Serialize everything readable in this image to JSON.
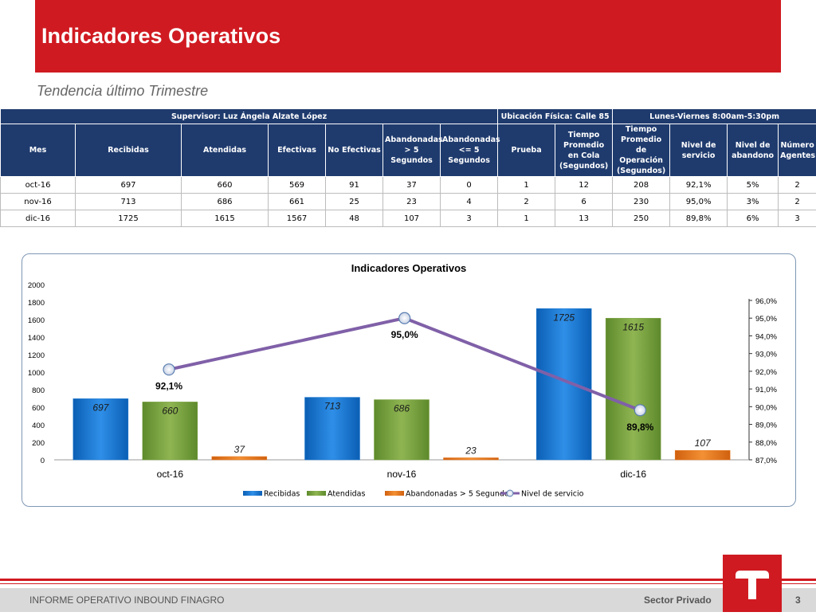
{
  "header": {
    "title": "Indicadores Operativos",
    "subtitle": "Tendencia último Trimestre"
  },
  "table": {
    "group_headers": [
      "Supervisor: Luz Ángela Alzate López",
      "Ubicación Física: Calle 85",
      "Lunes-Viernes 8:00am-5:30pm"
    ],
    "columns": [
      "Mes",
      "Recibidas",
      "Atendidas",
      "Efectivas",
      "No Efectivas",
      "Abandonadas > 5 Segundos",
      "Abandonadas <= 5 Segundos",
      "Prueba",
      "Tiempo Promedio en Cola (Segundos)",
      "Tiempo Promedio de Operación (Segundos)",
      "Nivel de servicio",
      "Nivel de abandono",
      "Número Agentes"
    ],
    "rows": [
      [
        "oct-16",
        "697",
        "660",
        "569",
        "91",
        "37",
        "0",
        "1",
        "12",
        "208",
        "92,1%",
        "5%",
        "2"
      ],
      [
        "nov-16",
        "713",
        "686",
        "661",
        "25",
        "23",
        "4",
        "2",
        "6",
        "230",
        "95,0%",
        "3%",
        "2"
      ],
      [
        "dic-16",
        "1725",
        "1615",
        "1567",
        "48",
        "107",
        "3",
        "1",
        "13",
        "250",
        "89,8%",
        "6%",
        "3"
      ]
    ]
  },
  "chart_data": {
    "type": "bar",
    "title": "Indicadores Operativos",
    "categories": [
      "oct-16",
      "nov-16",
      "dic-16"
    ],
    "series": [
      {
        "name": "Recibidas",
        "type": "bar",
        "values": [
          697,
          713,
          1725
        ],
        "labels": [
          "697",
          "713",
          "1725"
        ],
        "color": "#1a78d2"
      },
      {
        "name": "Atendidas",
        "type": "bar",
        "values": [
          660,
          686,
          1615
        ],
        "labels": [
          "660",
          "686",
          "1615"
        ],
        "color": "#77a03c"
      },
      {
        "name": "Abandonadas > 5 Segundos",
        "type": "bar",
        "values": [
          37,
          23,
          107
        ],
        "labels": [
          "37",
          "23",
          "107"
        ],
        "color": "#e8771e"
      },
      {
        "name": "Nivel de servicio",
        "type": "line",
        "axis": "right",
        "values": [
          92.1,
          95.0,
          89.8
        ],
        "labels": [
          "92,1%",
          "95,0%",
          "89,8%"
        ],
        "color": "#8060a8"
      }
    ],
    "ylim": [
      0,
      2000
    ],
    "yticks": [
      "0",
      "200",
      "400",
      "600",
      "800",
      "1000",
      "1200",
      "1400",
      "1600",
      "1800",
      "2000"
    ],
    "y2lim": [
      87,
      96
    ],
    "y2ticks": [
      "87,0%",
      "88,0%",
      "89,0%",
      "90,0%",
      "91,0%",
      "92,0%",
      "93,0%",
      "94,0%",
      "95,0%",
      "96,0%"
    ],
    "legend": "bottom",
    "grid": false
  },
  "footer": {
    "left": "INFORME OPERATIVO INBOUND FINAGRO",
    "right": "Sector Privado",
    "page": "3"
  },
  "colors": {
    "brand_red": "#d01a21",
    "table_header": "#1f3b6e"
  }
}
